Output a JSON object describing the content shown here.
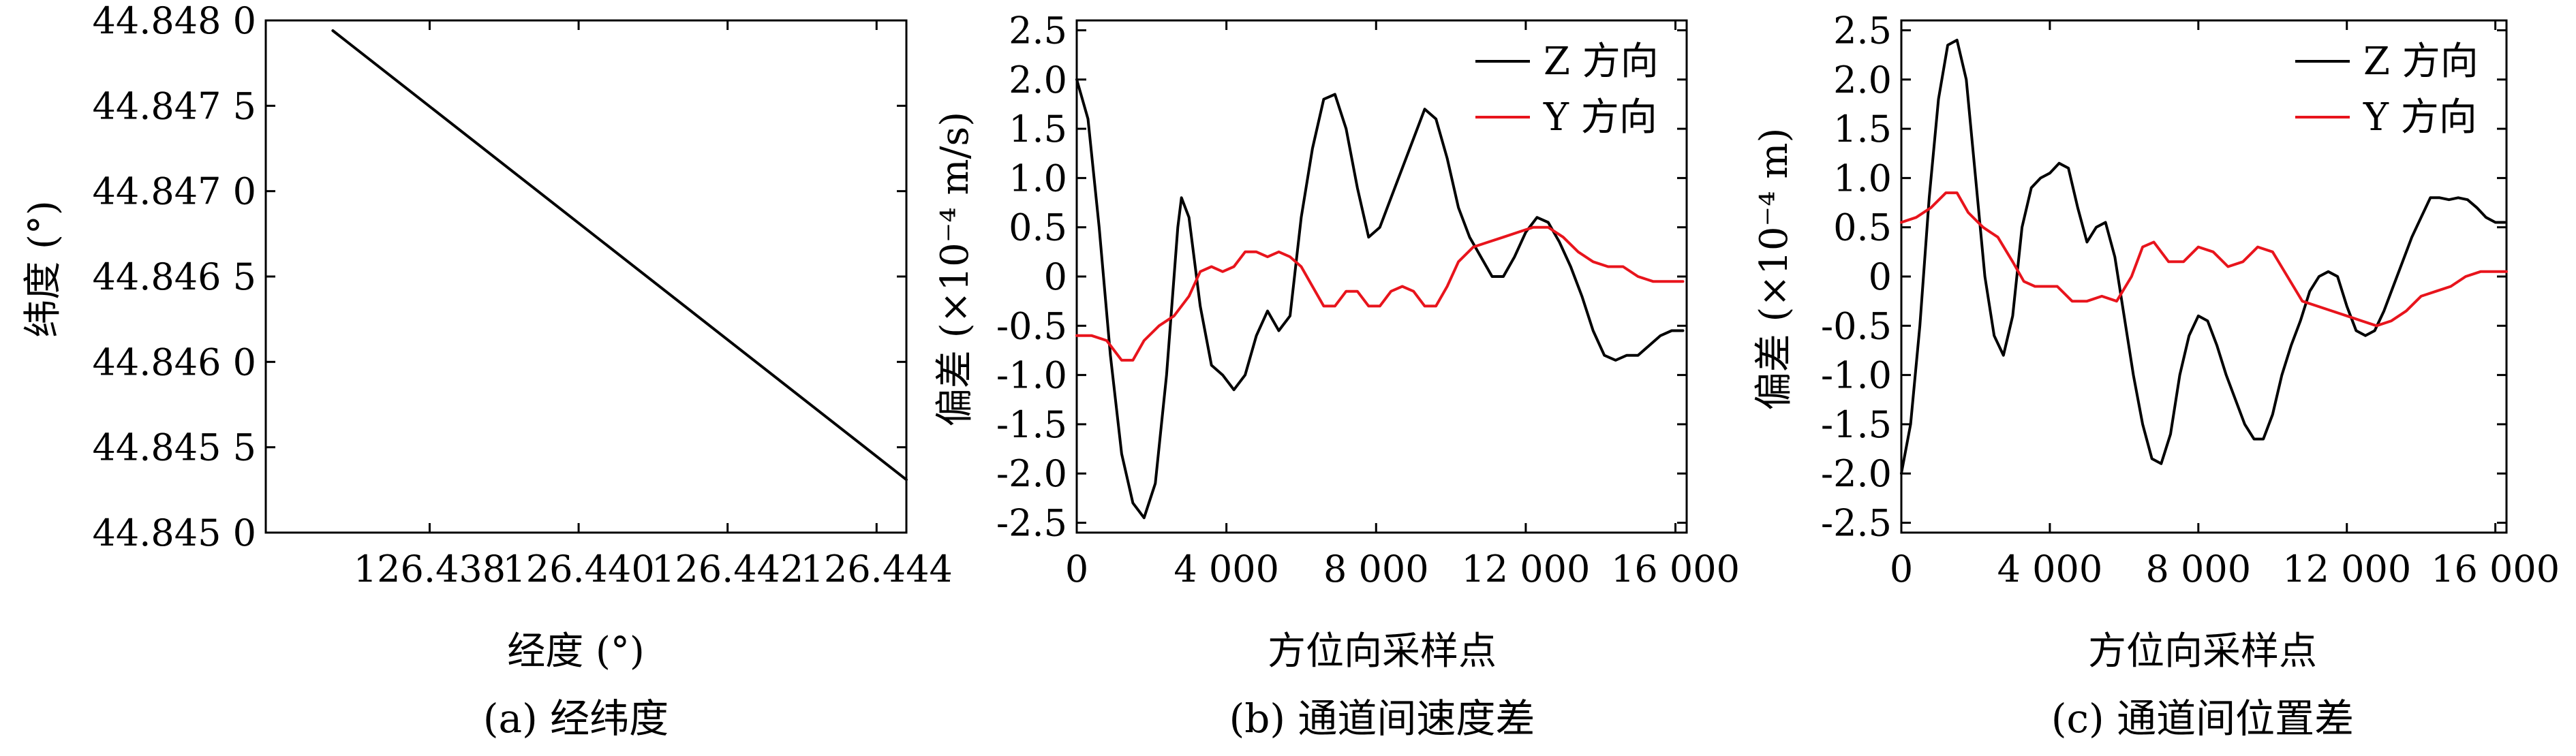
{
  "figure": {
    "panels": [
      {
        "caption": "(a) 经纬度"
      },
      {
        "caption": "(b) 通道间速度差"
      },
      {
        "caption": "(c) 通道间位置差"
      }
    ]
  },
  "chart_data": [
    {
      "type": "line",
      "title": "",
      "xlabel": "经度 (°)",
      "ylabel": "纬度 (°)",
      "xlim": [
        126.4358,
        126.4444
      ],
      "ylim": [
        44.845,
        44.848
      ],
      "x_ticks": [
        126.438,
        126.44,
        126.442,
        126.444
      ],
      "x_tick_labels": [
        "126.438",
        "126.440",
        "126.442",
        "126.444"
      ],
      "y_ticks": [
        44.845,
        44.8455,
        44.846,
        44.8465,
        44.847,
        44.8475,
        44.848
      ],
      "y_tick_labels": [
        "44.845 0",
        "44.845 5",
        "44.846 0",
        "44.846 5",
        "44.847 0",
        "44.847 5",
        "44.848 0"
      ],
      "grid": false,
      "series": [
        {
          "color": "#000000",
          "x": [
            126.4367,
            126.4444
          ],
          "y": [
            44.84794,
            44.84531
          ]
        }
      ]
    },
    {
      "type": "line",
      "title": "",
      "xlabel": "方位向采样点",
      "ylabel": "偏差 (×10⁻⁴ m/s)",
      "xlim": [
        0,
        16300
      ],
      "ylim": [
        -2.6,
        2.6
      ],
      "x_ticks": [
        0,
        4000,
        8000,
        12000,
        16000
      ],
      "x_tick_labels": [
        "0",
        "4 000",
        "8 000",
        "12 000",
        "16 000"
      ],
      "y_ticks": [
        -2.5,
        -2.0,
        -1.5,
        -1.0,
        -0.5,
        0,
        0.5,
        1.0,
        1.5,
        2.0,
        2.5
      ],
      "y_tick_labels": [
        "-2.5",
        "-2.0",
        "-1.5",
        "-1.0",
        "-0.5",
        "0",
        "0.5",
        "1.0",
        "1.5",
        "2.0",
        "2.5"
      ],
      "legend_position": "top-right",
      "grid": false,
      "series": [
        {
          "name": "Z 方向",
          "color": "#000000",
          "x": [
            0,
            300,
            600,
            900,
            1200,
            1500,
            1800,
            2100,
            2400,
            2700,
            2800,
            3000,
            3300,
            3600,
            3900,
            4200,
            4500,
            4800,
            5100,
            5400,
            5700,
            6000,
            6300,
            6600,
            6900,
            7200,
            7500,
            7800,
            8100,
            8400,
            8700,
            9000,
            9300,
            9600,
            9900,
            10200,
            10500,
            10800,
            11100,
            11400,
            11700,
            12000,
            12300,
            12600,
            12900,
            13200,
            13500,
            13800,
            14100,
            14400,
            14700,
            15000,
            15300,
            15600,
            15900,
            16200
          ],
          "y": [
            2.0,
            1.6,
            0.5,
            -0.8,
            -1.8,
            -2.3,
            -2.45,
            -2.1,
            -1.0,
            0.5,
            0.8,
            0.6,
            -0.3,
            -0.9,
            -1.0,
            -1.15,
            -1.0,
            -0.6,
            -0.35,
            -0.55,
            -0.4,
            0.6,
            1.3,
            1.8,
            1.85,
            1.5,
            0.9,
            0.4,
            0.5,
            0.8,
            1.1,
            1.4,
            1.7,
            1.6,
            1.2,
            0.7,
            0.4,
            0.2,
            0.0,
            0.0,
            0.2,
            0.45,
            0.6,
            0.55,
            0.35,
            0.1,
            -0.2,
            -0.55,
            -0.8,
            -0.85,
            -0.8,
            -0.8,
            -0.7,
            -0.6,
            -0.55,
            -0.55
          ]
        },
        {
          "name": "Y 方向",
          "color": "#e8141c",
          "x": [
            0,
            400,
            800,
            1200,
            1500,
            1800,
            2200,
            2600,
            3000,
            3300,
            3600,
            3900,
            4200,
            4500,
            4800,
            5100,
            5400,
            5700,
            6000,
            6300,
            6600,
            6900,
            7200,
            7500,
            7800,
            8100,
            8400,
            8700,
            9000,
            9300,
            9600,
            9900,
            10200,
            10600,
            11000,
            11400,
            11800,
            12200,
            12600,
            13000,
            13400,
            13800,
            14200,
            14600,
            15000,
            15400,
            15800,
            16200
          ],
          "y": [
            -0.6,
            -0.6,
            -0.65,
            -0.85,
            -0.85,
            -0.65,
            -0.5,
            -0.4,
            -0.2,
            0.05,
            0.1,
            0.05,
            0.1,
            0.25,
            0.25,
            0.2,
            0.25,
            0.2,
            0.1,
            -0.1,
            -0.3,
            -0.3,
            -0.15,
            -0.15,
            -0.3,
            -0.3,
            -0.15,
            -0.1,
            -0.15,
            -0.3,
            -0.3,
            -0.1,
            0.15,
            0.3,
            0.35,
            0.4,
            0.45,
            0.5,
            0.5,
            0.4,
            0.25,
            0.15,
            0.1,
            0.1,
            0.0,
            -0.05,
            -0.05,
            -0.05
          ]
        }
      ]
    },
    {
      "type": "line",
      "title": "",
      "xlabel": "方位向采样点",
      "ylabel": "偏差 (×10⁻⁴ m)",
      "xlim": [
        0,
        16300
      ],
      "ylim": [
        -2.6,
        2.6
      ],
      "x_ticks": [
        0,
        4000,
        8000,
        12000,
        16000
      ],
      "x_tick_labels": [
        "0",
        "4 000",
        "8 000",
        "12 000",
        "16 000"
      ],
      "y_ticks": [
        -2.5,
        -2.0,
        -1.5,
        -1.0,
        -0.5,
        0,
        0.5,
        1.0,
        1.5,
        2.0,
        2.5
      ],
      "y_tick_labels": [
        "-2.5",
        "-2.0",
        "-1.5",
        "-1.0",
        "-0.5",
        "0",
        "0.5",
        "1.0",
        "1.5",
        "2.0",
        "2.5"
      ],
      "legend_position": "top-right",
      "grid": false,
      "series": [
        {
          "name": "Z 方向",
          "color": "#000000",
          "x": [
            0,
            250,
            500,
            750,
            1000,
            1250,
            1500,
            1750,
            2000,
            2250,
            2500,
            2750,
            3000,
            3250,
            3500,
            3750,
            4000,
            4250,
            4500,
            4750,
            5000,
            5250,
            5500,
            5750,
            6000,
            6250,
            6500,
            6750,
            7000,
            7250,
            7500,
            7750,
            8000,
            8250,
            8500,
            8750,
            9000,
            9250,
            9500,
            9750,
            10000,
            10250,
            10500,
            10750,
            11000,
            11250,
            11500,
            11750,
            12000,
            12250,
            12500,
            12750,
            13000,
            13250,
            13500,
            13750,
            14000,
            14250,
            14500,
            14750,
            15000,
            15250,
            15500,
            15750,
            16000,
            16250
          ],
          "y": [
            -2.0,
            -1.5,
            -0.5,
            0.8,
            1.8,
            2.35,
            2.4,
            2.0,
            1.0,
            0.0,
            -0.6,
            -0.8,
            -0.4,
            0.5,
            0.9,
            1.0,
            1.05,
            1.15,
            1.1,
            0.7,
            0.35,
            0.5,
            0.55,
            0.2,
            -0.4,
            -1.0,
            -1.5,
            -1.85,
            -1.9,
            -1.6,
            -1.0,
            -0.6,
            -0.4,
            -0.45,
            -0.7,
            -1.0,
            -1.25,
            -1.5,
            -1.65,
            -1.65,
            -1.4,
            -1.0,
            -0.7,
            -0.45,
            -0.15,
            0.0,
            0.05,
            0.0,
            -0.3,
            -0.55,
            -0.6,
            -0.55,
            -0.35,
            -0.1,
            0.15,
            0.4,
            0.6,
            0.8,
            0.8,
            0.78,
            0.8,
            0.78,
            0.7,
            0.6,
            0.55,
            0.55
          ]
        },
        {
          "name": "Y 方向",
          "color": "#e8141c",
          "x": [
            0,
            400,
            800,
            1200,
            1500,
            1800,
            2200,
            2600,
            3000,
            3300,
            3600,
            3900,
            4200,
            4600,
            5000,
            5400,
            5800,
            6200,
            6500,
            6800,
            7200,
            7600,
            8000,
            8400,
            8800,
            9200,
            9600,
            10000,
            10400,
            10800,
            11200,
            11600,
            12000,
            12400,
            12800,
            13200,
            13600,
            14000,
            14400,
            14800,
            15200,
            15600,
            16000,
            16300
          ],
          "y": [
            0.55,
            0.6,
            0.7,
            0.85,
            0.85,
            0.65,
            0.5,
            0.4,
            0.15,
            -0.05,
            -0.1,
            -0.1,
            -0.1,
            -0.25,
            -0.25,
            -0.2,
            -0.25,
            0.0,
            0.3,
            0.35,
            0.15,
            0.15,
            0.3,
            0.25,
            0.1,
            0.15,
            0.3,
            0.25,
            0.0,
            -0.25,
            -0.3,
            -0.35,
            -0.4,
            -0.45,
            -0.5,
            -0.45,
            -0.35,
            -0.2,
            -0.15,
            -0.1,
            0.0,
            0.05,
            0.05,
            0.05
          ]
        }
      ]
    }
  ]
}
